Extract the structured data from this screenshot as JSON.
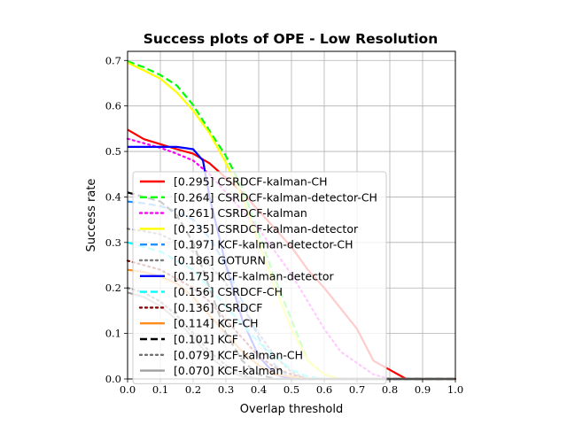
{
  "chart_data": {
    "type": "line",
    "title": "Success plots of OPE - Low Resolution",
    "xlabel": "Overlap threshold",
    "ylabel": "Success rate",
    "xlim": [
      0.0,
      1.0
    ],
    "ylim": [
      0.0,
      0.72
    ],
    "xticks": [
      "0.0",
      "0.1",
      "0.2",
      "0.3",
      "0.4",
      "0.5",
      "0.6",
      "0.7",
      "0.8",
      "0.9",
      "1.0"
    ],
    "yticks": [
      "0.0",
      "0.1",
      "0.2",
      "0.3",
      "0.4",
      "0.5",
      "0.6",
      "0.7"
    ],
    "grid": true,
    "legend_position": "lower left",
    "series": [
      {
        "name": "[0.295] CSRDCF-kalman-CH",
        "color": "#ff0000",
        "dash": "solid",
        "x": [
          0,
          0.05,
          0.1,
          0.15,
          0.2,
          0.25,
          0.3,
          0.35,
          0.4,
          0.45,
          0.5,
          0.55,
          0.6,
          0.65,
          0.7,
          0.75,
          0.8,
          0.85,
          0.9,
          1.0
        ],
        "y": [
          0.548,
          0.527,
          0.516,
          0.505,
          0.495,
          0.474,
          0.442,
          0.41,
          0.37,
          0.33,
          0.29,
          0.24,
          0.2,
          0.155,
          0.11,
          0.04,
          0.02,
          0.0,
          0.0,
          0.0
        ]
      },
      {
        "name": "[0.264] CSRDCF-kalman-detector-CH",
        "color": "#00ff00",
        "dash": "dashed",
        "x": [
          0,
          0.05,
          0.1,
          0.15,
          0.2,
          0.25,
          0.3,
          0.35,
          0.4,
          0.45,
          0.5,
          0.55,
          0.6,
          0.65,
          0.7,
          1.0
        ],
        "y": [
          0.698,
          0.685,
          0.668,
          0.645,
          0.602,
          0.545,
          0.49,
          0.42,
          0.32,
          0.22,
          0.13,
          0.04,
          0.01,
          0.0,
          0.0,
          0.0
        ]
      },
      {
        "name": "[0.261] CSRDCF-kalman",
        "color": "#ff00ff",
        "dash": "dotted",
        "x": [
          0,
          0.05,
          0.1,
          0.15,
          0.2,
          0.25,
          0.3,
          0.35,
          0.4,
          0.45,
          0.5,
          0.55,
          0.6,
          0.65,
          0.7,
          0.75,
          0.8,
          1.0
        ],
        "y": [
          0.528,
          0.518,
          0.508,
          0.495,
          0.48,
          0.45,
          0.41,
          0.37,
          0.33,
          0.28,
          0.23,
          0.17,
          0.11,
          0.06,
          0.035,
          0.01,
          0.0,
          0.0
        ]
      },
      {
        "name": "[0.235] CSRDCF-kalman-detector",
        "color": "#ffff00",
        "dash": "solid",
        "x": [
          0,
          0.05,
          0.1,
          0.15,
          0.2,
          0.25,
          0.3,
          0.35,
          0.4,
          0.45,
          0.5,
          0.55,
          0.6,
          0.65,
          1.0
        ],
        "y": [
          0.695,
          0.678,
          0.66,
          0.63,
          0.59,
          0.54,
          0.475,
          0.4,
          0.3,
          0.2,
          0.11,
          0.04,
          0.01,
          0.0,
          0.0
        ]
      },
      {
        "name": "[0.197] KCF-kalman-detector-CH",
        "color": "#1e90ff",
        "dash": "dashed",
        "x": [
          0,
          0.05,
          0.1,
          0.15,
          0.2,
          0.25,
          0.3,
          0.35,
          0.4,
          0.45,
          0.5,
          1.0
        ],
        "y": [
          0.39,
          0.386,
          0.38,
          0.368,
          0.35,
          0.31,
          0.25,
          0.17,
          0.09,
          0.03,
          0.0,
          0.0
        ]
      },
      {
        "name": "[0.186] GOTURN",
        "color": "#808080",
        "dash": "dotted",
        "x": [
          0,
          0.05,
          0.1,
          0.15,
          0.2,
          0.25,
          0.3,
          0.35,
          0.4,
          0.45,
          0.5,
          0.55,
          1.0
        ],
        "y": [
          0.33,
          0.325,
          0.318,
          0.3,
          0.28,
          0.25,
          0.21,
          0.16,
          0.1,
          0.05,
          0.015,
          0.0,
          0.0
        ]
      },
      {
        "name": "[0.175] KCF-kalman-detector",
        "color": "#0000ff",
        "dash": "solid",
        "x": [
          0,
          0.05,
          0.1,
          0.15,
          0.2,
          0.23,
          0.25,
          0.3,
          0.35,
          0.4,
          0.45,
          0.5,
          1.0
        ],
        "y": [
          0.51,
          0.51,
          0.51,
          0.51,
          0.505,
          0.48,
          0.4,
          0.25,
          0.13,
          0.05,
          0.01,
          0.0,
          0.0
        ]
      },
      {
        "name": "[0.156] CSRDCF-CH",
        "color": "#00ffff",
        "dash": "dashed",
        "x": [
          0,
          0.05,
          0.1,
          0.15,
          0.2,
          0.25,
          0.3,
          0.35,
          0.4,
          0.45,
          0.5,
          0.55,
          0.6,
          1.0
        ],
        "y": [
          0.3,
          0.29,
          0.28,
          0.26,
          0.24,
          0.2,
          0.16,
          0.12,
          0.08,
          0.05,
          0.02,
          0.005,
          0.0,
          0.0
        ]
      },
      {
        "name": "[0.136] CSRDCF",
        "color": "#8b0000",
        "dash": "dotted",
        "x": [
          0,
          0.05,
          0.1,
          0.15,
          0.2,
          0.25,
          0.3,
          0.35,
          0.4,
          0.45,
          0.5,
          0.55,
          1.0
        ],
        "y": [
          0.26,
          0.25,
          0.24,
          0.22,
          0.2,
          0.17,
          0.13,
          0.09,
          0.05,
          0.025,
          0.01,
          0.0,
          0.0
        ]
      },
      {
        "name": "[0.114] KCF-CH",
        "color": "#ff8c1a",
        "dash": "solid",
        "x": [
          0,
          0.05,
          0.1,
          0.15,
          0.2,
          0.25,
          0.3,
          0.35,
          0.4,
          0.45,
          0.5,
          0.55,
          1.0
        ],
        "y": [
          0.24,
          0.235,
          0.225,
          0.21,
          0.18,
          0.14,
          0.1,
          0.06,
          0.03,
          0.01,
          0.005,
          0.0,
          0.0
        ]
      },
      {
        "name": "[0.101] KCF",
        "color": "#000000",
        "dash": "dashed",
        "x": [
          0,
          0.05,
          0.1,
          0.15,
          0.2,
          0.25,
          0.3,
          0.35,
          0.4,
          0.45,
          0.5,
          1.0
        ],
        "y": [
          0.41,
          0.4,
          0.39,
          0.36,
          0.3,
          0.2,
          0.1,
          0.04,
          0.01,
          0.0,
          0.0,
          0.0
        ]
      },
      {
        "name": "[0.079] KCF-kalman-CH",
        "color": "#707070",
        "dash": "dotted",
        "x": [
          0,
          0.05,
          0.1,
          0.15,
          0.2,
          0.25,
          0.3,
          0.35,
          0.4,
          0.45,
          1.0
        ],
        "y": [
          0.2,
          0.19,
          0.17,
          0.14,
          0.1,
          0.06,
          0.03,
          0.01,
          0.0,
          0.0,
          0.0
        ]
      },
      {
        "name": "[0.070] KCF-kalman",
        "color": "#a0a0a0",
        "dash": "solid",
        "x": [
          0,
          0.05,
          0.1,
          0.15,
          0.2,
          0.25,
          0.3,
          0.35,
          0.4,
          1.0
        ],
        "y": [
          0.19,
          0.18,
          0.16,
          0.13,
          0.09,
          0.05,
          0.02,
          0.005,
          0.0,
          0.0
        ]
      }
    ]
  }
}
